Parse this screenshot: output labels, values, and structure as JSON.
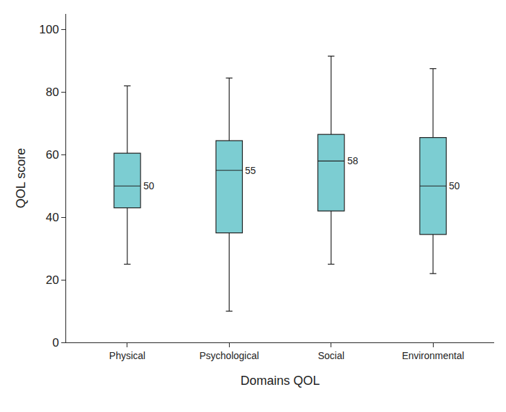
{
  "chart_data": {
    "type": "box",
    "xlabel": "Domains QOL",
    "ylabel": "QOL score",
    "categories": [
      "Physical",
      "Psychological",
      "Social",
      "Environmental"
    ],
    "lowerfence": [
      25,
      10,
      25,
      22
    ],
    "q1": [
      43,
      35,
      42,
      34.5
    ],
    "median": [
      50,
      55,
      58,
      50
    ],
    "q3": [
      60.5,
      64.5,
      66.5,
      65.5
    ],
    "upperfence": [
      82,
      84.5,
      91.5,
      87.5
    ],
    "color": "#7ccdd2",
    "data_labels": true,
    "ylim": [
      0,
      105
    ],
    "yticks": [
      0,
      20,
      40,
      60,
      80,
      100
    ],
    "grid": false
  }
}
